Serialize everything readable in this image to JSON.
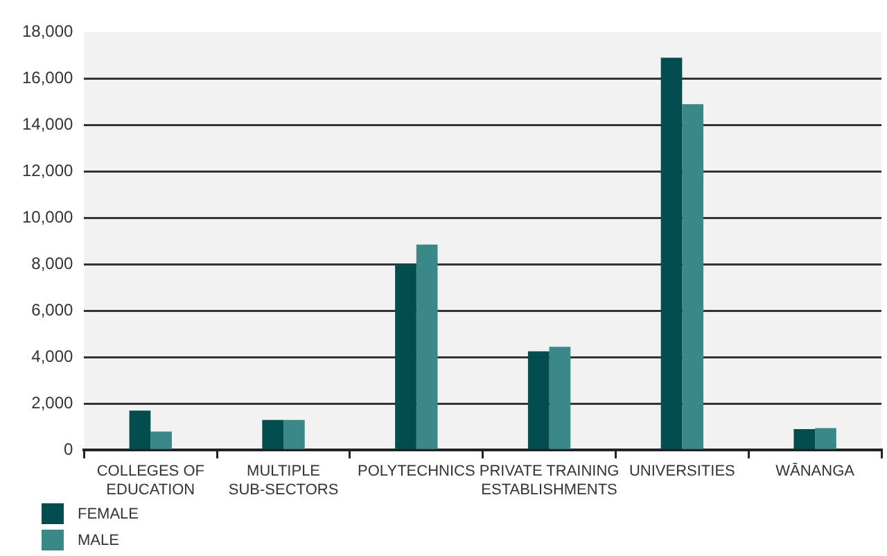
{
  "chart_data": {
    "type": "bar",
    "categories": [
      "COLLEGES OF EDUCATION",
      "MULTIPLE SUB-SECTORS",
      "POLYTECHNICS",
      "PRIVATE TRAINING ESTABLISHMENTS",
      "UNIVERSITIES",
      "WĀNANGA"
    ],
    "series": [
      {
        "name": "FEMALE",
        "color": "#034d4f",
        "values": [
          1700,
          1300,
          8000,
          4250,
          16900,
          900
        ]
      },
      {
        "name": "MALE",
        "color": "#3a8887",
        "values": [
          800,
          1300,
          8850,
          4450,
          14900,
          950
        ]
      }
    ],
    "ylim": [
      0,
      18000
    ],
    "yticks": [
      {
        "value": 0,
        "label": "0"
      },
      {
        "value": 2000,
        "label": "2,000"
      },
      {
        "value": 4000,
        "label": "4,000"
      },
      {
        "value": 6000,
        "label": "6,000"
      },
      {
        "value": 8000,
        "label": "8,000"
      },
      {
        "value": 10000,
        "label": "10,000"
      },
      {
        "value": 12000,
        "label": "12,000"
      },
      {
        "value": 14000,
        "label": "14,000"
      },
      {
        "value": 16000,
        "label": "16,000"
      },
      {
        "value": 18000,
        "label": "18,000"
      }
    ],
    "grid": "y",
    "legend": "bottom left"
  }
}
